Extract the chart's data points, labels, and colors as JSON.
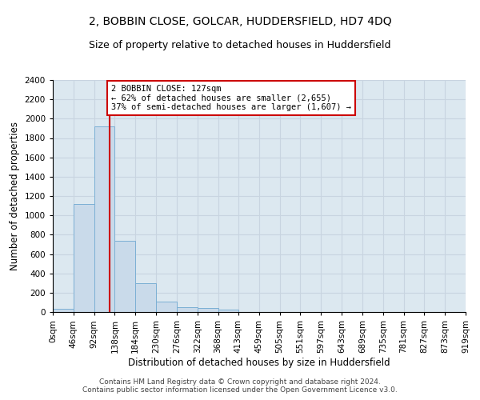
{
  "title": "2, BOBBIN CLOSE, GOLCAR, HUDDERSFIELD, HD7 4DQ",
  "subtitle": "Size of property relative to detached houses in Huddersfield",
  "xlabel": "Distribution of detached houses by size in Huddersfield",
  "ylabel": "Number of detached properties",
  "bin_edges": [
    0,
    46,
    92,
    138,
    184,
    230,
    276,
    322,
    368,
    413,
    459,
    505,
    551,
    597,
    643,
    689,
    735,
    781,
    827,
    873,
    919
  ],
  "bar_heights": [
    35,
    1120,
    1920,
    740,
    300,
    105,
    50,
    40,
    25,
    0,
    0,
    0,
    0,
    0,
    0,
    0,
    0,
    0,
    0,
    0
  ],
  "bar_color": "#c9daea",
  "bar_edgecolor": "#7bafd4",
  "subject_size": 127,
  "subject_label": "2 BOBBIN CLOSE: 127sqm",
  "annotation_line1": "← 62% of detached houses are smaller (2,655)",
  "annotation_line2": "37% of semi-detached houses are larger (1,607) →",
  "vline_color": "#cc0000",
  "annotation_box_edgecolor": "#cc0000",
  "footer_line1": "Contains HM Land Registry data © Crown copyright and database right 2024.",
  "footer_line2": "Contains public sector information licensed under the Open Government Licence v3.0.",
  "ylim": [
    0,
    2400
  ],
  "yticks": [
    0,
    200,
    400,
    600,
    800,
    1000,
    1200,
    1400,
    1600,
    1800,
    2000,
    2200,
    2400
  ],
  "grid_color": "#c8d4e0",
  "background_color": "#dce8f0",
  "title_fontsize": 10,
  "subtitle_fontsize": 9,
  "axis_label_fontsize": 8.5,
  "tick_fontsize": 7.5,
  "footer_fontsize": 6.5
}
